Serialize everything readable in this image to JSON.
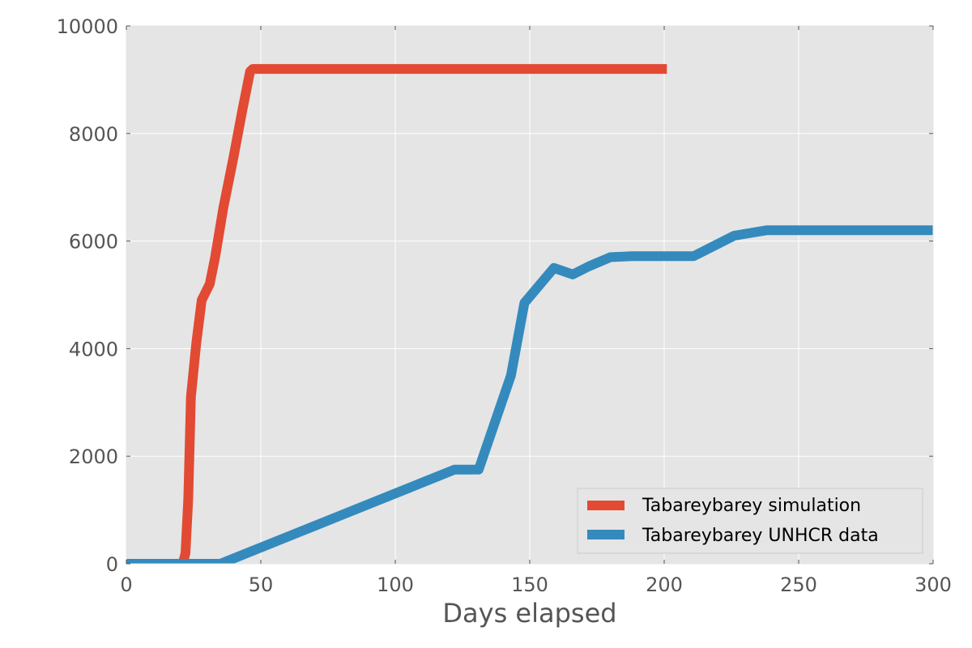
{
  "chart_data": {
    "type": "line",
    "xlabel": "Days elapsed",
    "ylabel": "",
    "xlim": [
      0,
      300
    ],
    "ylim": [
      0,
      10000
    ],
    "xticks": [
      0,
      50,
      100,
      150,
      200,
      250,
      300
    ],
    "yticks": [
      0,
      2000,
      4000,
      6000,
      8000,
      10000
    ],
    "grid": true,
    "legend_position": "lower-right",
    "colors": {
      "plot_background": "#e5e5e5",
      "grid": "#ffffff",
      "tick_text": "#555555"
    },
    "series": [
      {
        "name": "Tabareybarey simulation",
        "color": "#e24a33",
        "x": [
          0,
          21,
          22,
          23,
          24,
          26,
          28,
          31,
          33,
          36,
          40,
          43,
          46,
          47,
          60,
          80,
          100,
          120,
          140,
          160,
          180,
          200,
          201
        ],
        "y": [
          0,
          0,
          200,
          1200,
          3100,
          4100,
          4900,
          5200,
          5700,
          6600,
          7600,
          8400,
          9150,
          9200,
          9200,
          9200,
          9200,
          9200,
          9200,
          9200,
          9200,
          9200,
          9200
        ]
      },
      {
        "name": "Tabareybarey UNHCR data",
        "color": "#348abd",
        "x": [
          0,
          31,
          35,
          122,
          131,
          143,
          148,
          159,
          166,
          172,
          180,
          188,
          211,
          226,
          238,
          300
        ],
        "y": [
          0,
          0,
          0,
          1750,
          1750,
          3500,
          4850,
          5500,
          5380,
          5530,
          5700,
          5720,
          5720,
          6100,
          6200,
          6200
        ]
      }
    ]
  }
}
